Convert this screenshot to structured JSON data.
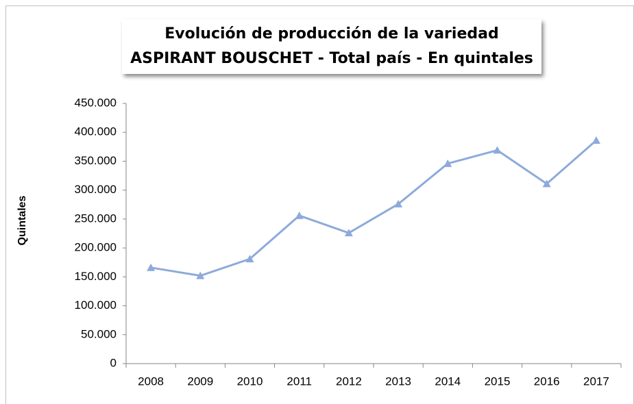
{
  "chart_data": {
    "type": "line",
    "title": [
      "Evolución de producción de la variedad",
      "ASPIRANT BOUSCHET - Total país - En quintales"
    ],
    "y_label": "Quintales",
    "categories": [
      "2008",
      "2009",
      "2010",
      "2011",
      "2012",
      "2013",
      "2014",
      "2015",
      "2016",
      "2017"
    ],
    "series": [
      {
        "color": "#8eaadb",
        "values": [
          166000,
          152000,
          181000,
          256000,
          226000,
          276000,
          346000,
          369000,
          311000,
          386000
        ]
      }
    ],
    "ylim": [
      0,
      450000
    ],
    "yticks": [
      0,
      {
        "value": 50000,
        "label": "50.000"
      },
      {
        "value": 100000,
        "label": "100.000"
      },
      {
        "value": 150000,
        "label": "150.000"
      },
      {
        "value": 200000,
        "label": "200.000"
      },
      {
        "value": 250000,
        "label": "250.000"
      },
      {
        "value": 300000,
        "label": "300.000"
      },
      {
        "value": 350000,
        "label": "350.000"
      },
      {
        "value": 400000,
        "label": "400.000"
      },
      {
        "value": 450000,
        "label": "450.000"
      }
    ],
    "grid": false
  }
}
